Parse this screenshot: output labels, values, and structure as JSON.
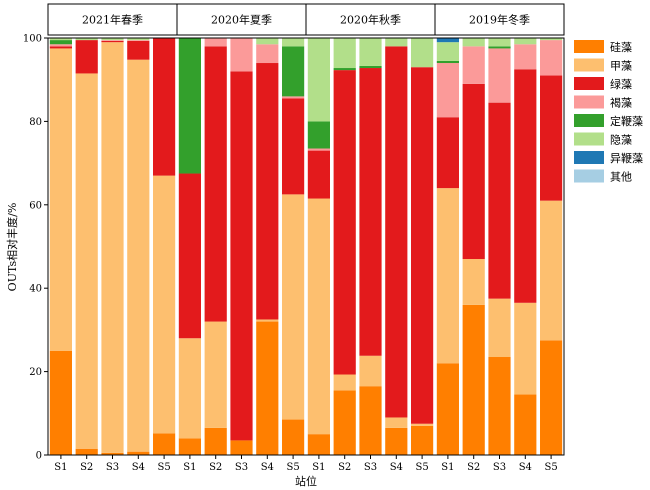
{
  "chart_data": {
    "type": "bar",
    "stacked": true,
    "ylabel": "OUTs相对丰度/%",
    "xlabel": "站位",
    "ylim": [
      0,
      100
    ],
    "yticks": [
      0,
      20,
      40,
      60,
      80,
      100
    ],
    "legend_position": "right",
    "panels": [
      {
        "label": "2021年春季",
        "categories": [
          "S1",
          "S2",
          "S3",
          "S4",
          "S5"
        ]
      },
      {
        "label": "2020年夏季",
        "categories": [
          "S1",
          "S2",
          "S3",
          "S4",
          "S5"
        ]
      },
      {
        "label": "2020年秋季",
        "categories": [
          "S1",
          "S2",
          "S3",
          "S4",
          "S5"
        ]
      },
      {
        "label": "2019年冬季",
        "categories": [
          "S1",
          "S2",
          "S3",
          "S4",
          "S5"
        ]
      }
    ],
    "series": [
      {
        "name": "硅藻",
        "color": "#FF7F00",
        "values": [
          25.0,
          1.5,
          0.5,
          0.8,
          5.2,
          4.0,
          6.5,
          3.5,
          32.0,
          8.5,
          5.0,
          15.5,
          16.5,
          6.5,
          7.0,
          22.0,
          36.0,
          23.5,
          14.5,
          27.5
        ]
      },
      {
        "name": "甲藻",
        "color": "#FDBF6F",
        "values": [
          72.5,
          90.0,
          98.5,
          94.0,
          61.8,
          24.0,
          25.5,
          0.0,
          0.5,
          54.0,
          56.5,
          3.8,
          7.3,
          2.5,
          0.5,
          42.0,
          11.0,
          14.0,
          22.0,
          33.5
        ]
      },
      {
        "name": "绿藻",
        "color": "#E31A1C",
        "values": [
          0.5,
          8.0,
          0.3,
          4.5,
          33.0,
          39.5,
          66.0,
          88.5,
          61.5,
          23.0,
          11.5,
          73.0,
          69.0,
          89.0,
          85.5,
          17.0,
          42.0,
          47.0,
          56.0,
          30.0
        ]
      },
      {
        "name": "褐藻",
        "color": "#FB9A99",
        "values": [
          0.5,
          0.0,
          0.2,
          0.2,
          0.0,
          0.0,
          2.0,
          8.0,
          4.5,
          0.5,
          0.5,
          0.0,
          0.0,
          0.0,
          0.0,
          13.0,
          9.0,
          13.0,
          6.0,
          8.5
        ]
      },
      {
        "name": "定鞭藻",
        "color": "#33A02C",
        "values": [
          1.0,
          0.0,
          0.0,
          0.0,
          0.0,
          32.5,
          0.0,
          0.0,
          0.0,
          12.0,
          6.5,
          0.5,
          0.5,
          0.0,
          0.0,
          0.5,
          0.0,
          0.5,
          0.0,
          0.0
        ]
      },
      {
        "name": "隐藻",
        "color": "#B2DF8A",
        "values": [
          0.5,
          0.5,
          0.5,
          0.5,
          0.0,
          0.0,
          0.0,
          0.0,
          1.5,
          2.0,
          20.0,
          7.2,
          6.7,
          2.0,
          7.0,
          4.5,
          2.0,
          2.0,
          1.5,
          0.5
        ]
      },
      {
        "name": "异鞭藻",
        "color": "#1F78B4",
        "values": [
          0.0,
          0.0,
          0.0,
          0.0,
          0.0,
          0.0,
          0.0,
          0.0,
          0.0,
          0.0,
          0.0,
          0.0,
          0.0,
          0.0,
          0.0,
          1.0,
          0.0,
          0.0,
          0.0,
          0.0
        ]
      },
      {
        "name": "其他",
        "color": "#A6CEE3",
        "values": [
          0.0,
          0.0,
          0.0,
          0.0,
          0.0,
          0.0,
          0.0,
          0.0,
          0.0,
          0.0,
          0.0,
          0.0,
          0.0,
          0.0,
          0.0,
          0.0,
          0.0,
          0.0,
          0.0,
          0.0
        ]
      }
    ]
  }
}
